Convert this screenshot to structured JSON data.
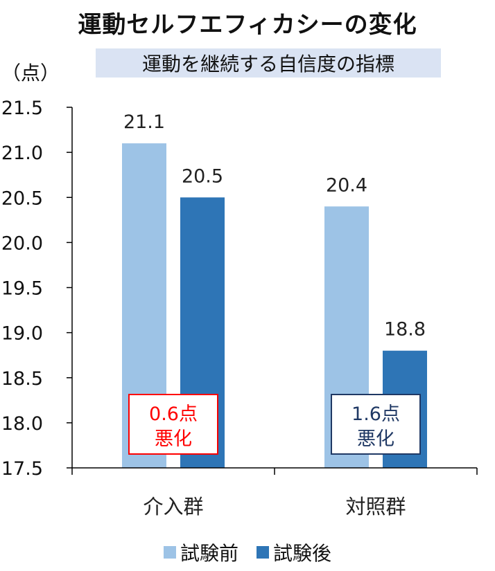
{
  "chart_data": {
    "type": "bar",
    "title": "運動セルフエフィカシーの変化",
    "subtitle": "運動を継続する自信度の指標",
    "unit": "（点）",
    "categories": [
      "介入群",
      "対照群"
    ],
    "series": [
      {
        "name": "試験前",
        "values": [
          21.1,
          20.4
        ],
        "color": "#9dc3e6"
      },
      {
        "name": "試験後",
        "values": [
          20.5,
          18.8
        ],
        "color": "#2e75b6"
      }
    ],
    "data_labels": [
      [
        "21.1",
        "20.4"
      ],
      [
        "20.5",
        "18.8"
      ]
    ],
    "ylim": [
      17.5,
      21.5
    ],
    "yticks": [
      "17.5",
      "18.0",
      "18.5",
      "19.0",
      "19.5",
      "20.0",
      "20.5",
      "21.0",
      "21.5"
    ],
    "grid": false,
    "legend_position": "bottom",
    "annotations": [
      {
        "line1": "0.6点",
        "line2": "悪化",
        "category": "介入群",
        "border": "#ff0000",
        "text_color": "#ff0000"
      },
      {
        "line1": "1.6点",
        "line2": "悪化",
        "category": "対照群",
        "border": "#1f3864",
        "text_color": "#1f3864"
      }
    ]
  }
}
